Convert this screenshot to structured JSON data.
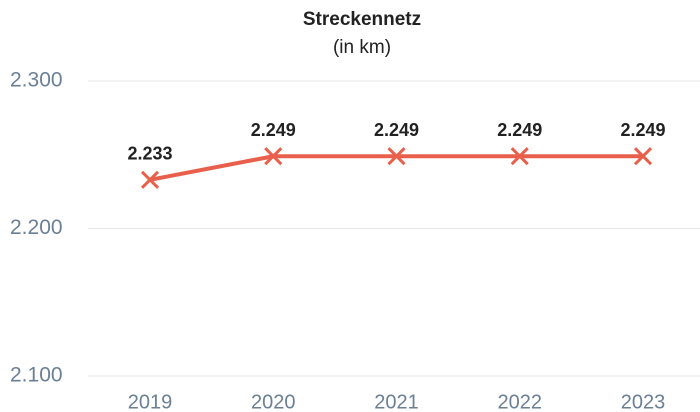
{
  "chart_data": {
    "type": "line",
    "title": "Streckennetz",
    "subtitle": "(in km)",
    "categories": [
      "2019",
      "2020",
      "2021",
      "2022",
      "2023"
    ],
    "series": [
      {
        "name": "Streckennetz",
        "color": "#e8604c",
        "values": [
          2233,
          2249,
          2249,
          2249,
          2249
        ],
        "value_labels": [
          "2.233",
          "2.249",
          "2.249",
          "2.249",
          "2.249"
        ]
      }
    ],
    "ylim": [
      2100,
      2300
    ],
    "yticks": [
      {
        "value": 2100,
        "label": "2.100"
      },
      {
        "value": 2200,
        "label": "2.200"
      },
      {
        "value": 2300,
        "label": "2.300"
      }
    ],
    "grid": true
  }
}
